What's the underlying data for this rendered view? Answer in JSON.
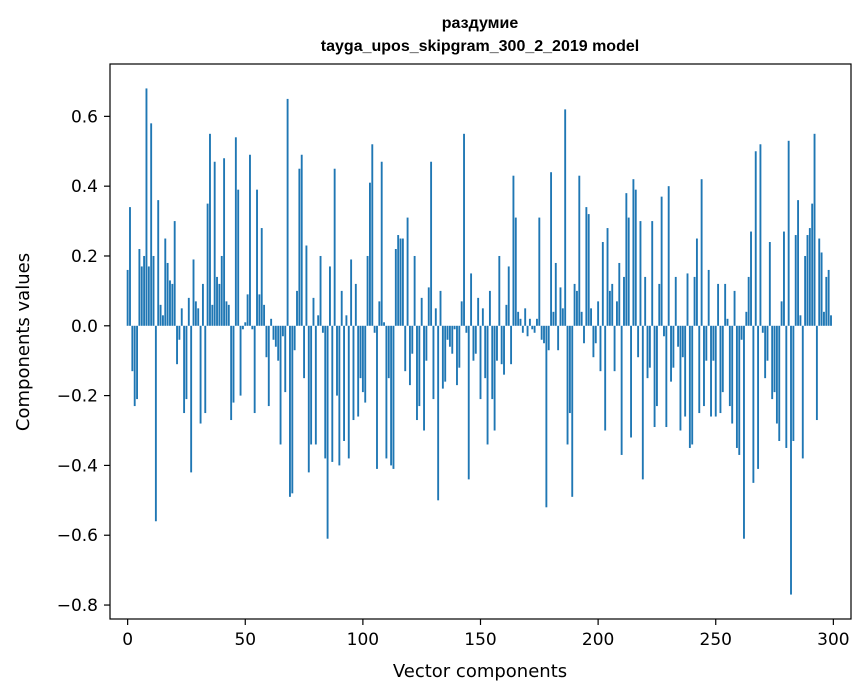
{
  "chart_data": {
    "type": "bar",
    "title": "раздумие",
    "subtitle": "tayga_upos_skipgram_300_2_2019 model",
    "xlabel": "Vector components",
    "ylabel": "Components values",
    "xlim": [
      -7.5,
      307.5
    ],
    "ylim": [
      -0.84,
      0.75
    ],
    "xticks": [
      0,
      50,
      100,
      150,
      200,
      250,
      300
    ],
    "yticks": [
      -0.8,
      -0.6,
      -0.4,
      -0.2,
      0.0,
      0.2,
      0.4,
      0.6
    ],
    "ytick_labels": [
      "−0.8",
      "−0.6",
      "−0.4",
      "−0.2",
      "0.0",
      "0.2",
      "0.4",
      "0.6"
    ],
    "bar_color": "#1f77b4",
    "values": [
      0.16,
      0.34,
      -0.13,
      -0.23,
      -0.21,
      0.22,
      0.17,
      0.2,
      0.68,
      0.17,
      0.58,
      0.2,
      -0.56,
      0.36,
      0.06,
      0.03,
      0.25,
      0.18,
      0.13,
      0.12,
      0.3,
      -0.11,
      -0.04,
      0.05,
      -0.25,
      -0.21,
      0.08,
      -0.42,
      0.19,
      0.07,
      0.05,
      -0.28,
      0.12,
      -0.25,
      0.35,
      0.55,
      0.06,
      0.47,
      0.14,
      0.12,
      0.2,
      0.48,
      0.07,
      0.06,
      -0.27,
      -0.22,
      0.54,
      0.39,
      -0.2,
      -0.01,
      0.01,
      0.09,
      0.49,
      -0.01,
      -0.25,
      0.39,
      0.09,
      0.28,
      0.06,
      -0.09,
      -0.23,
      0.02,
      -0.04,
      -0.06,
      -0.1,
      -0.34,
      -0.03,
      -0.19,
      0.65,
      -0.49,
      -0.48,
      -0.07,
      0.1,
      0.45,
      0.49,
      -0.15,
      0.23,
      -0.42,
      -0.34,
      0.08,
      -0.34,
      0.03,
      0.2,
      -0.02,
      -0.38,
      -0.61,
      0.17,
      -0.39,
      0.45,
      -0.2,
      -0.4,
      0.1,
      -0.33,
      0.03,
      -0.38,
      0.19,
      -0.27,
      0.12,
      -0.26,
      -0.15,
      -0.19,
      -0.22,
      0.2,
      0.41,
      0.52,
      -0.02,
      -0.41,
      0.07,
      0.47,
      0.01,
      -0.38,
      -0.15,
      -0.4,
      -0.41,
      0.22,
      0.26,
      0.25,
      0.25,
      -0.13,
      0.31,
      -0.17,
      -0.08,
      0.2,
      -0.27,
      -0.23,
      0.08,
      -0.3,
      -0.1,
      0.11,
      0.47,
      -0.21,
      0.05,
      -0.5,
      0.1,
      -0.18,
      -0.16,
      -0.04,
      -0.06,
      -0.08,
      -0.01,
      -0.17,
      -0.12,
      0.07,
      0.55,
      -0.02,
      -0.44,
      0.15,
      -0.1,
      -0.08,
      0.08,
      -0.21,
      0.05,
      -0.15,
      -0.34,
      0.1,
      -0.21,
      -0.3,
      -0.1,
      0.2,
      -0.11,
      -0.14,
      0.06,
      0.17,
      -0.11,
      0.43,
      0.31,
      0.04,
      0.02,
      -0.02,
      0.05,
      -0.03,
      0.02,
      -0.01,
      -0.02,
      0.02,
      0.31,
      -0.04,
      -0.05,
      -0.52,
      -0.07,
      0.44,
      0.04,
      0.18,
      -0.07,
      0.11,
      0.05,
      0.62,
      -0.34,
      -0.25,
      -0.49,
      0.12,
      0.1,
      0.43,
      0.04,
      -0.05,
      0.34,
      0.32,
      0.05,
      -0.09,
      -0.05,
      0.07,
      -0.13,
      0.24,
      -0.3,
      0.28,
      0.1,
      0.12,
      -0.13,
      0.07,
      0.18,
      -0.37,
      0.14,
      0.38,
      0.31,
      -0.32,
      0.42,
      0.39,
      -0.09,
      0.3,
      -0.44,
      0.14,
      -0.15,
      -0.12,
      0.3,
      -0.29,
      -0.23,
      0.12,
      0.37,
      -0.03,
      -0.29,
      0.4,
      -0.16,
      -0.12,
      0.14,
      -0.06,
      -0.3,
      -0.09,
      -0.26,
      0.15,
      -0.35,
      -0.34,
      0.14,
      0.25,
      -0.25,
      0.42,
      -0.23,
      -0.1,
      0.16,
      -0.26,
      -0.1,
      -0.26,
      0.12,
      -0.25,
      -0.19,
      0.12,
      0.02,
      -0.23,
      -0.28,
      0.1,
      -0.35,
      -0.37,
      -0.04,
      -0.61,
      0.04,
      0.14,
      0.27,
      -0.45,
      0.5,
      -0.41,
      0.52,
      -0.02,
      -0.15,
      -0.1,
      0.24,
      -0.21,
      -0.19,
      -0.28,
      -0.33,
      0.07,
      0.27,
      -0.35,
      0.53,
      -0.77,
      -0.33,
      0.26,
      0.36,
      0.03,
      -0.38,
      0.2,
      0.26,
      0.28,
      0.35,
      0.55,
      -0.27,
      0.25,
      0.21,
      0.04,
      0.14,
      0.16,
      0.03
    ]
  }
}
